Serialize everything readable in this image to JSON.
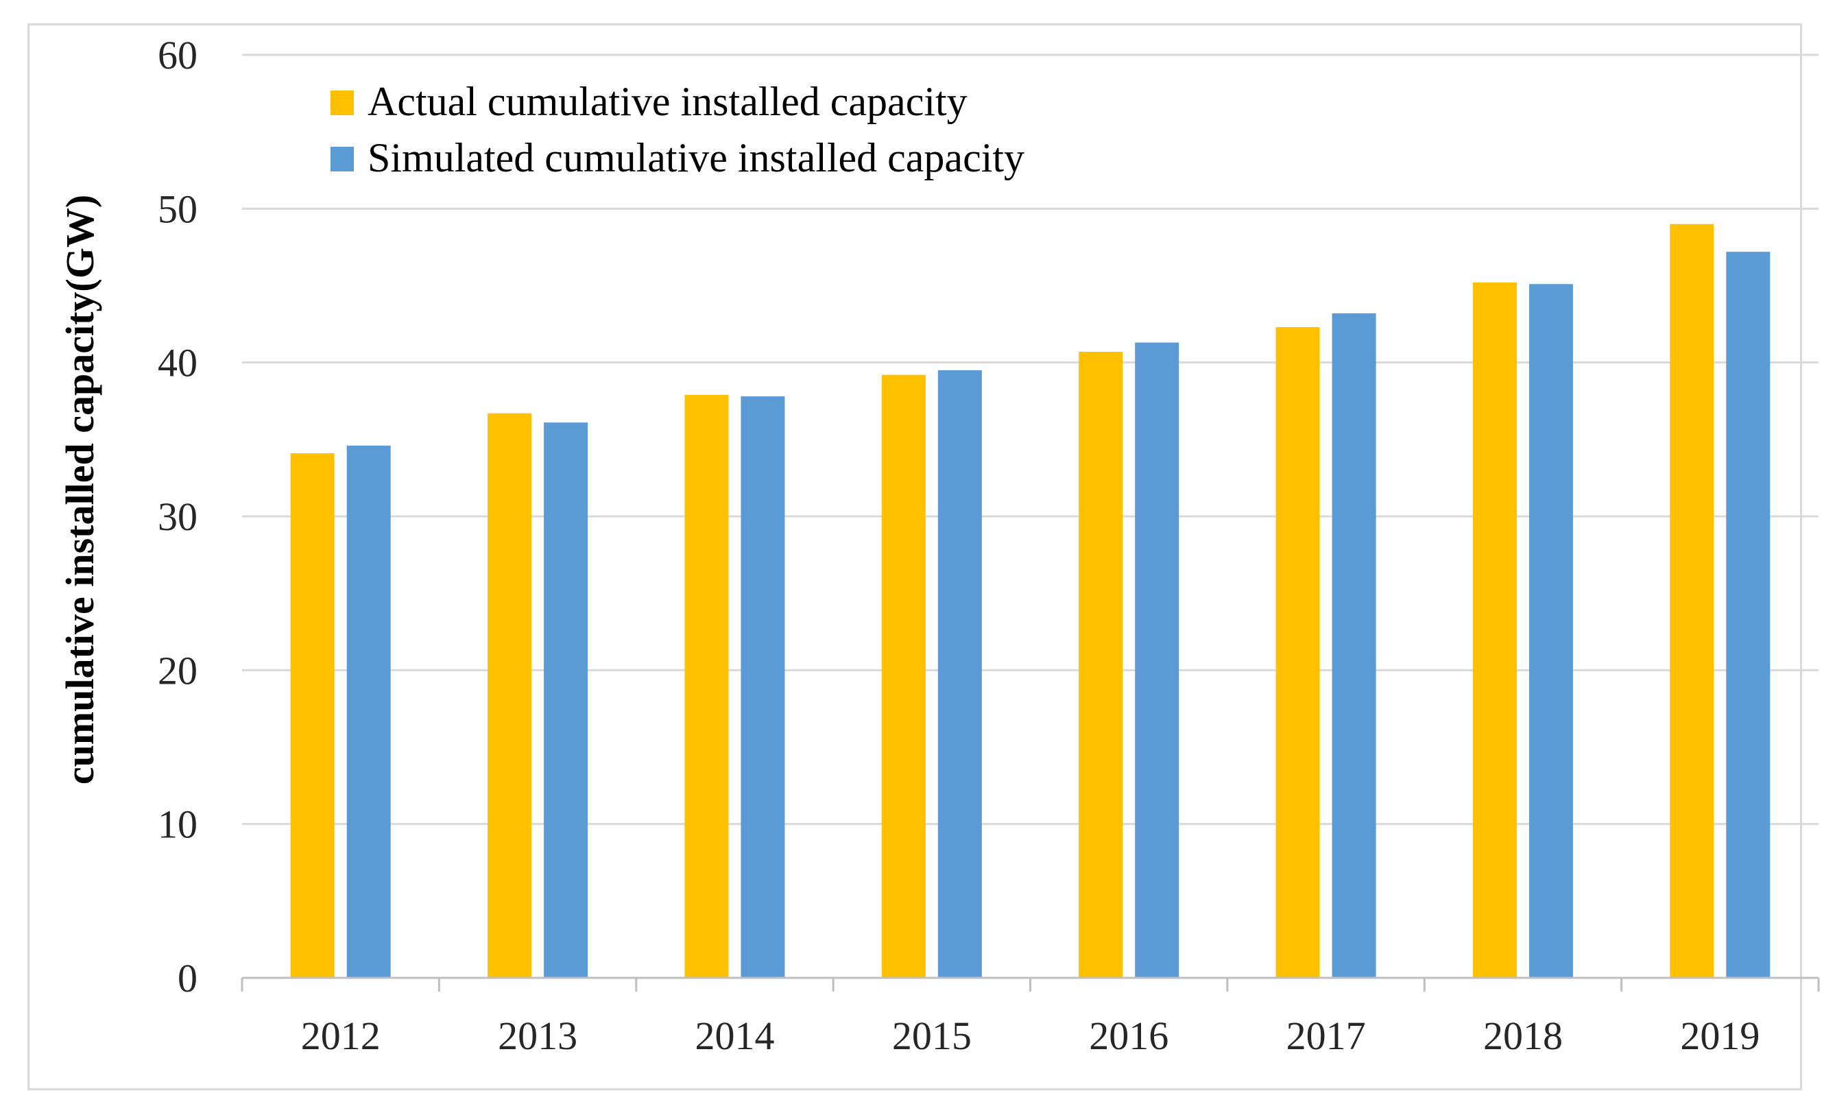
{
  "chart_data": {
    "type": "bar",
    "title": "",
    "xlabel": "",
    "ylabel": "cumulative installed capacity(GW)",
    "categories": [
      "2012",
      "2013",
      "2014",
      "2015",
      "2016",
      "2017",
      "2018",
      "2019"
    ],
    "series": [
      {
        "name": "Actual cumulative installed capacity",
        "color": "#FFC000",
        "values": [
          34.1,
          36.7,
          37.9,
          39.2,
          40.7,
          42.3,
          45.2,
          49.0
        ]
      },
      {
        "name": "Simulated cumulative installed capacity",
        "color": "#5B9BD5",
        "values": [
          34.6,
          36.1,
          37.8,
          39.5,
          41.3,
          43.2,
          45.1,
          47.2
        ]
      }
    ],
    "ylim": [
      0,
      60
    ],
    "yticks": [
      0,
      10,
      20,
      30,
      40,
      50,
      60
    ],
    "grid": true,
    "legend_position": "top-left",
    "colors": {
      "grid": "#d9d9d9",
      "axis": "#bfbfbf",
      "text": "#262626"
    }
  }
}
